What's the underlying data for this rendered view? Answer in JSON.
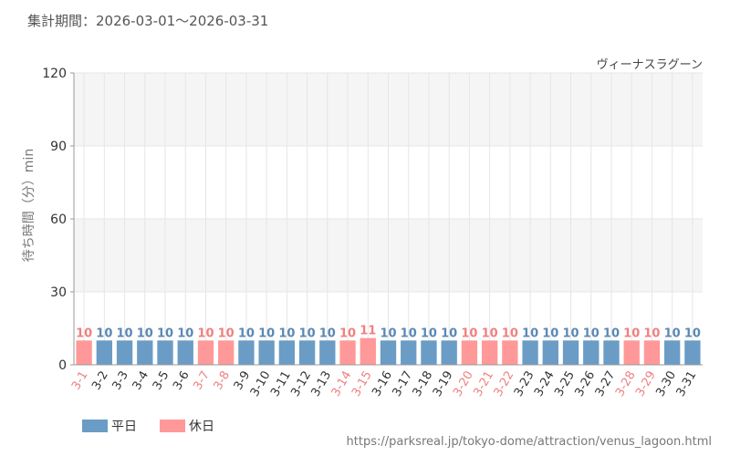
{
  "header": {
    "period": "集計期間：2026-03-01～2026-03-31"
  },
  "source_url": "https://parksreal.jp/tokyo-dome/attraction/venus_lagoon.html",
  "colors": {
    "weekday": "#6a9cc6",
    "holiday": "#ff9999",
    "weekday_label": "#5b88b4",
    "holiday_label": "#f08080",
    "band": "#f5f5f5",
    "grid": "#e6e6e6",
    "axis": "#999999"
  },
  "chart_data": {
    "type": "bar",
    "title": "ヴィーナスラグーン",
    "xlabel": "",
    "ylabel": "待ち時間（分）min",
    "ylim": [
      0,
      120
    ],
    "yticks": [
      0,
      30,
      60,
      90,
      120
    ],
    "grid": true,
    "legend_position": "bottom-left",
    "legend": [
      {
        "key": "weekday",
        "label": "平日"
      },
      {
        "key": "holiday",
        "label": "休日"
      }
    ],
    "categories": [
      "3-1",
      "3-2",
      "3-3",
      "3-4",
      "3-5",
      "3-6",
      "3-7",
      "3-8",
      "3-9",
      "3-10",
      "3-11",
      "3-12",
      "3-13",
      "3-14",
      "3-15",
      "3-16",
      "3-17",
      "3-18",
      "3-19",
      "3-20",
      "3-21",
      "3-22",
      "3-23",
      "3-24",
      "3-25",
      "3-26",
      "3-27",
      "3-28",
      "3-29",
      "3-30",
      "3-31"
    ],
    "values": [
      10,
      10,
      10,
      10,
      10,
      10,
      10,
      10,
      10,
      10,
      10,
      10,
      10,
      10,
      11,
      10,
      10,
      10,
      10,
      10,
      10,
      10,
      10,
      10,
      10,
      10,
      10,
      10,
      10,
      10,
      10
    ],
    "day_type": [
      "holiday",
      "weekday",
      "weekday",
      "weekday",
      "weekday",
      "weekday",
      "holiday",
      "holiday",
      "weekday",
      "weekday",
      "weekday",
      "weekday",
      "weekday",
      "holiday",
      "holiday",
      "weekday",
      "weekday",
      "weekday",
      "weekday",
      "holiday",
      "holiday",
      "holiday",
      "weekday",
      "weekday",
      "weekday",
      "weekday",
      "weekday",
      "holiday",
      "holiday",
      "weekday",
      "weekday"
    ]
  }
}
